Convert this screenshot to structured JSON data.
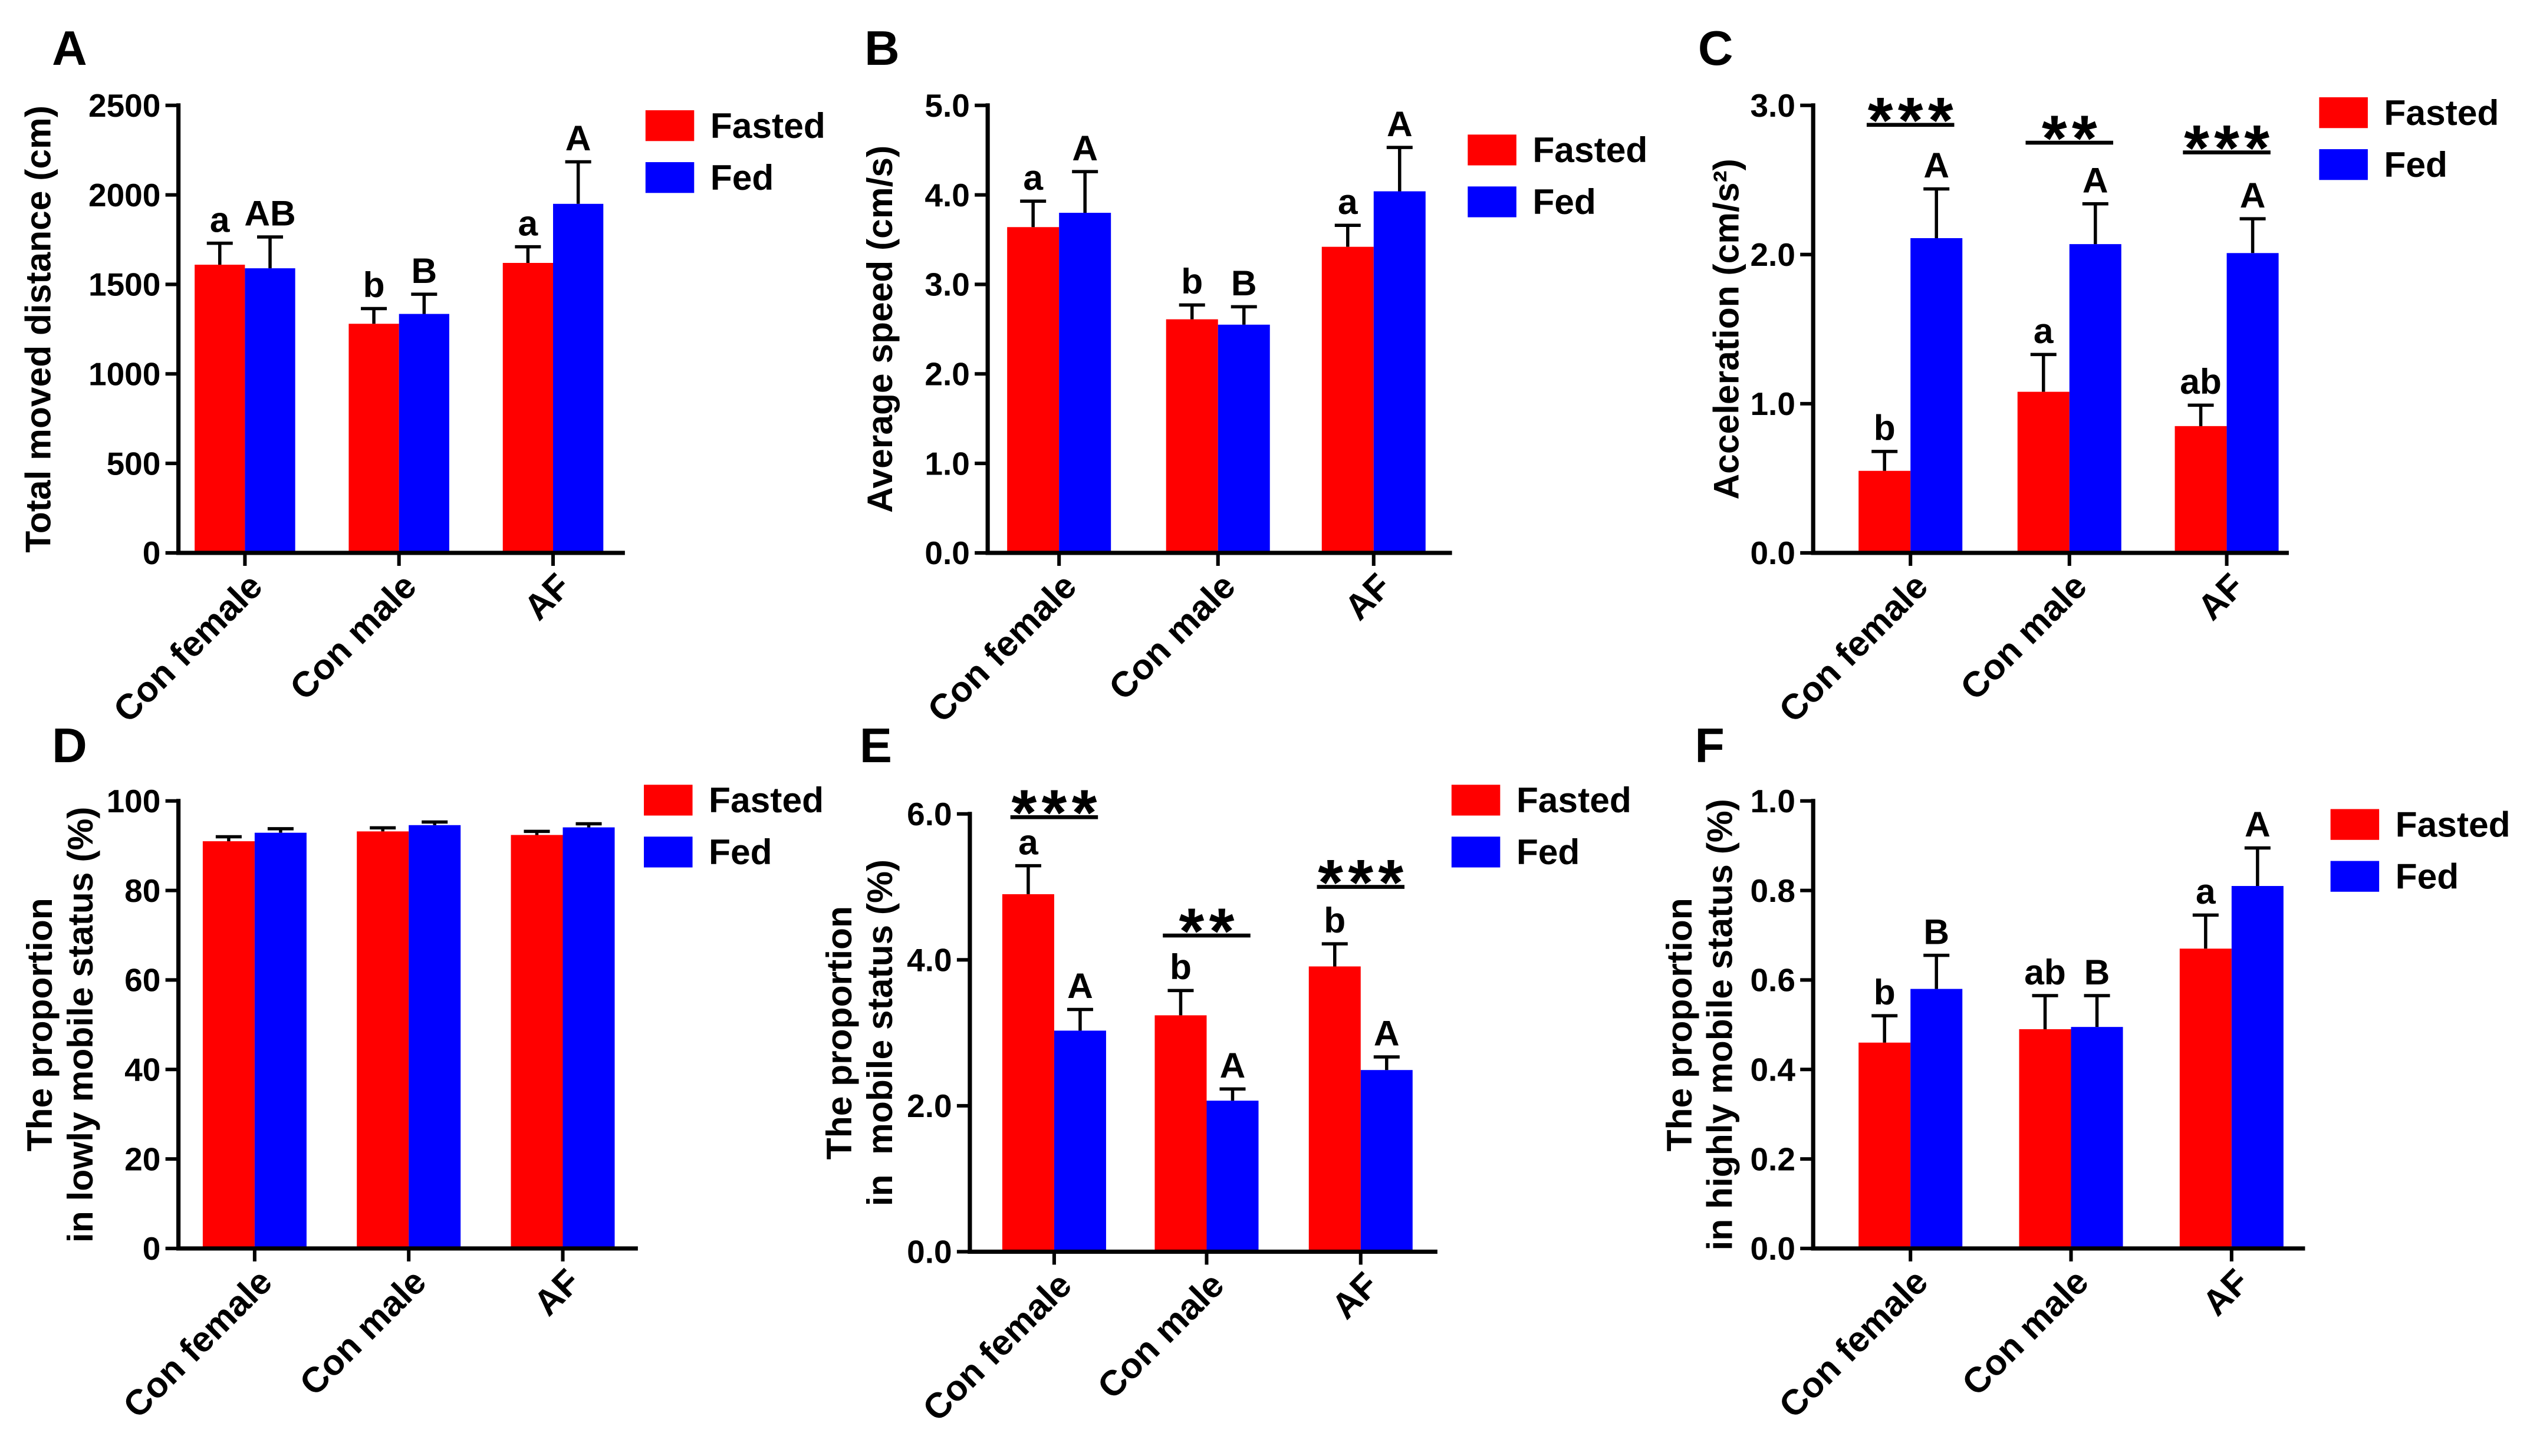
{
  "chart_data": [
    {
      "panel": "A",
      "type": "bar",
      "categories": [
        "Con female",
        "Con male",
        "AF"
      ],
      "series": [
        {
          "name": "Fasted",
          "color": "#FF0000",
          "values": [
            1610,
            1280,
            1620
          ],
          "sem": [
            120,
            85,
            90
          ],
          "letters": [
            "a",
            "b",
            "a"
          ]
        },
        {
          "name": "Fed",
          "color": "#0000FF",
          "values": [
            1590,
            1335,
            1950
          ],
          "sem": [
            175,
            110,
            235
          ],
          "letters": [
            "AB",
            "B",
            "A"
          ]
        }
      ],
      "significance": [],
      "ylabel": [
        "Total moved distance (cm)"
      ],
      "yticks": [
        "0",
        "500",
        "1000",
        "1500",
        "2000",
        "2500"
      ],
      "ylim": [
        0,
        2500
      ],
      "legend": "top-right",
      "grid": false
    },
    {
      "panel": "B",
      "type": "bar",
      "categories": [
        "Con female",
        "Con male",
        "AF"
      ],
      "series": [
        {
          "name": "Fasted",
          "color": "#FF0000",
          "values": [
            3.64,
            2.61,
            3.42
          ],
          "sem": [
            0.29,
            0.16,
            0.24
          ],
          "letters": [
            "a",
            "b",
            "a"
          ]
        },
        {
          "name": "Fed",
          "color": "#0000FF",
          "values": [
            3.8,
            2.55,
            4.04
          ],
          "sem": [
            0.46,
            0.2,
            0.49
          ],
          "letters": [
            "A",
            "B",
            "A"
          ]
        }
      ],
      "significance": [],
      "ylabel": [
        "Average speed (cm/s)"
      ],
      "yticks": [
        "0.0",
        "1.0",
        "2.0",
        "3.0",
        "4.0",
        "5.0"
      ],
      "ylim": [
        0,
        5
      ],
      "legend": "top-right",
      "grid": false
    },
    {
      "panel": "C",
      "type": "bar",
      "categories": [
        "Con female",
        "Con male",
        "AF"
      ],
      "series": [
        {
          "name": "Fasted",
          "color": "#FF0000",
          "values": [
            0.55,
            1.08,
            0.85
          ],
          "sem": [
            0.13,
            0.25,
            0.14
          ],
          "letters": [
            "b",
            "a",
            "ab"
          ]
        },
        {
          "name": "Fed",
          "color": "#0000FF",
          "values": [
            2.11,
            2.07,
            2.01
          ],
          "sem": [
            0.33,
            0.27,
            0.23
          ],
          "letters": [
            "A",
            "A",
            "A"
          ]
        }
      ],
      "significance": [
        "***",
        "**",
        "***"
      ],
      "ylabel": [
        "Acceleration (cm/s²)"
      ],
      "yticks": [
        "0.0",
        "1.0",
        "2.0",
        "3.0"
      ],
      "ylim": [
        0,
        3
      ],
      "legend": "top-right",
      "grid": false
    },
    {
      "panel": "D",
      "type": "bar",
      "categories": [
        "Con female",
        "Con male",
        "AF"
      ],
      "series": [
        {
          "name": "Fasted",
          "color": "#FF0000",
          "values": [
            91.0,
            93.2,
            92.4
          ],
          "sem": [
            1.0,
            0.8,
            0.8
          ],
          "letters": []
        },
        {
          "name": "Fed",
          "color": "#0000FF",
          "values": [
            92.9,
            94.6,
            94.1
          ],
          "sem": [
            0.9,
            0.7,
            0.8
          ],
          "letters": []
        }
      ],
      "significance": [],
      "ylabel": [
        "The proportion",
        "in lowly mobile status (%)"
      ],
      "yticks": [
        "0",
        "20",
        "40",
        "60",
        "80",
        "100"
      ],
      "ylim": [
        0,
        100
      ],
      "legend": "top-right",
      "grid": false
    },
    {
      "panel": "E",
      "type": "bar",
      "categories": [
        "Con female",
        "Con male",
        "AF"
      ],
      "series": [
        {
          "name": "Fasted",
          "color": "#FF0000",
          "values": [
            4.9,
            3.24,
            3.91
          ],
          "sem": [
            0.39,
            0.34,
            0.31
          ],
          "letters": [
            "a",
            "b",
            "b"
          ]
        },
        {
          "name": "Fed",
          "color": "#0000FF",
          "values": [
            3.03,
            2.07,
            2.49
          ],
          "sem": [
            0.29,
            0.16,
            0.18
          ],
          "letters": [
            "A",
            "A",
            "A"
          ]
        }
      ],
      "significance": [
        "***",
        "**",
        "***"
      ],
      "ylabel": [
        "The proportion",
        "in  mobile status (%)"
      ],
      "yticks": [
        "0.0",
        "2.0",
        "4.0",
        "6.0"
      ],
      "ylim": [
        0,
        6
      ],
      "legend": "top-right",
      "grid": false
    },
    {
      "panel": "F",
      "type": "bar",
      "categories": [
        "Con female",
        "Con male",
        "AF"
      ],
      "series": [
        {
          "name": "Fasted",
          "color": "#FF0000",
          "values": [
            0.46,
            0.49,
            0.67
          ],
          "sem": [
            0.06,
            0.075,
            0.075
          ],
          "letters": [
            "b",
            "ab",
            "a"
          ]
        },
        {
          "name": "Fed",
          "color": "#0000FF",
          "values": [
            0.58,
            0.495,
            0.81
          ],
          "sem": [
            0.075,
            0.07,
            0.085
          ],
          "letters": [
            "B",
            "B",
            "A"
          ]
        }
      ],
      "significance": [],
      "ylabel": [
        "The proportion",
        "in highly mobile status (%)"
      ],
      "yticks": [
        "0.0",
        "0.2",
        "0.4",
        "0.6",
        "0.8",
        "1.0"
      ],
      "ylim": [
        0,
        1
      ],
      "legend": "top-right",
      "grid": false
    }
  ]
}
